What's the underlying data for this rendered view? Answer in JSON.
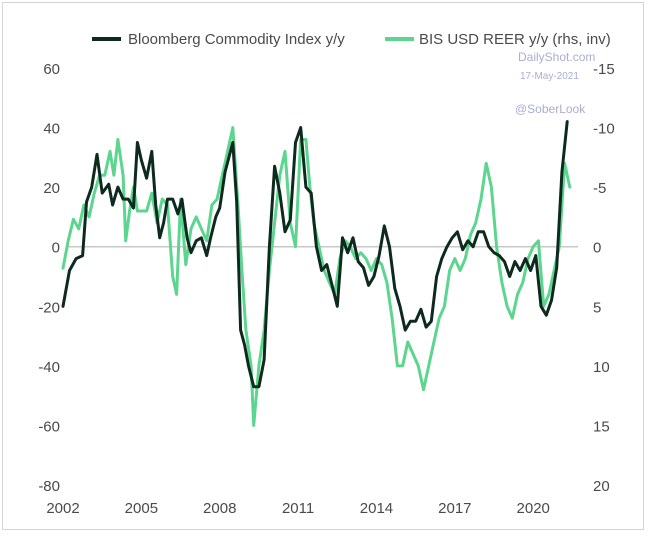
{
  "chart_data": {
    "type": "line",
    "legend": [
      {
        "label": "Bloomberg Commodity Index y/y",
        "color": "#0e2a1e"
      },
      {
        "label": "BIS USD REER y/y (rhs, inv)",
        "color": "#5cd68e"
      }
    ],
    "legend_position": "top",
    "watermark": {
      "site": "DailyShot.com",
      "date": "17-May-2021",
      "handle": "@SoberLook"
    },
    "x_ticks": [
      "2002",
      "2005",
      "2008",
      "2011",
      "2014",
      "2017",
      "2020"
    ],
    "x_range": [
      2002,
      2021.6
    ],
    "y_left": {
      "ticks": [
        "60",
        "40",
        "20",
        "0",
        "-20",
        "-40",
        "-60",
        "-80"
      ],
      "range": [
        -80,
        60
      ]
    },
    "y_right": {
      "ticks": [
        "-15",
        "-10",
        "-5",
        "0",
        "5",
        "10",
        "15",
        "20"
      ],
      "range": [
        20,
        -15
      ],
      "inverted": true
    },
    "zero_line": true,
    "series": [
      {
        "name": "Bloomberg Commodity Index y/y",
        "axis": "left",
        "color": "#0e2a1e",
        "points": [
          [
            2002.0,
            -20
          ],
          [
            2002.25,
            -8
          ],
          [
            2002.5,
            -4
          ],
          [
            2002.75,
            -3
          ],
          [
            2002.9,
            15
          ],
          [
            2003.1,
            20
          ],
          [
            2003.3,
            31
          ],
          [
            2003.5,
            18
          ],
          [
            2003.75,
            21
          ],
          [
            2003.9,
            14
          ],
          [
            2004.1,
            20
          ],
          [
            2004.3,
            16
          ],
          [
            2004.5,
            16
          ],
          [
            2004.7,
            13
          ],
          [
            2004.85,
            35
          ],
          [
            2005.0,
            29
          ],
          [
            2005.2,
            23
          ],
          [
            2005.4,
            32
          ],
          [
            2005.55,
            14
          ],
          [
            2005.7,
            3
          ],
          [
            2005.85,
            8
          ],
          [
            2006.0,
            16
          ],
          [
            2006.2,
            16
          ],
          [
            2006.4,
            11
          ],
          [
            2006.55,
            16
          ],
          [
            2006.75,
            3
          ],
          [
            2006.9,
            -2
          ],
          [
            2007.1,
            2
          ],
          [
            2007.3,
            3
          ],
          [
            2007.5,
            -3
          ],
          [
            2007.65,
            3
          ],
          [
            2007.85,
            10
          ],
          [
            2008.0,
            13
          ],
          [
            2008.2,
            25
          ],
          [
            2008.35,
            30
          ],
          [
            2008.5,
            35
          ],
          [
            2008.65,
            15
          ],
          [
            2008.8,
            -28
          ],
          [
            2008.95,
            -33
          ],
          [
            2009.1,
            -40
          ],
          [
            2009.3,
            -47
          ],
          [
            2009.5,
            -47
          ],
          [
            2009.7,
            -38
          ],
          [
            2009.9,
            0
          ],
          [
            2010.1,
            27
          ],
          [
            2010.3,
            18
          ],
          [
            2010.5,
            5
          ],
          [
            2010.7,
            9
          ],
          [
            2010.9,
            35
          ],
          [
            2011.1,
            40
          ],
          [
            2011.3,
            20
          ],
          [
            2011.5,
            18
          ],
          [
            2011.7,
            0
          ],
          [
            2011.9,
            -8
          ],
          [
            2012.1,
            -6
          ],
          [
            2012.3,
            -13
          ],
          [
            2012.5,
            -20
          ],
          [
            2012.7,
            3
          ],
          [
            2012.9,
            -2
          ],
          [
            2013.1,
            3
          ],
          [
            2013.3,
            -5
          ],
          [
            2013.5,
            -7
          ],
          [
            2013.7,
            -13
          ],
          [
            2013.9,
            -10
          ],
          [
            2014.1,
            -3
          ],
          [
            2014.3,
            7
          ],
          [
            2014.5,
            0
          ],
          [
            2014.7,
            -14
          ],
          [
            2014.9,
            -20
          ],
          [
            2015.1,
            -28
          ],
          [
            2015.3,
            -25
          ],
          [
            2015.5,
            -25
          ],
          [
            2015.7,
            -21
          ],
          [
            2015.9,
            -27
          ],
          [
            2016.1,
            -25
          ],
          [
            2016.3,
            -10
          ],
          [
            2016.5,
            -4
          ],
          [
            2016.7,
            0
          ],
          [
            2016.9,
            3
          ],
          [
            2017.1,
            5
          ],
          [
            2017.3,
            -1
          ],
          [
            2017.5,
            2
          ],
          [
            2017.7,
            0
          ],
          [
            2017.9,
            5
          ],
          [
            2018.1,
            5
          ],
          [
            2018.3,
            0
          ],
          [
            2018.5,
            -2
          ],
          [
            2018.7,
            -3
          ],
          [
            2018.9,
            -5
          ],
          [
            2019.1,
            -10
          ],
          [
            2019.3,
            -5
          ],
          [
            2019.5,
            -8
          ],
          [
            2019.7,
            -4
          ],
          [
            2019.9,
            -8
          ],
          [
            2020.1,
            -3
          ],
          [
            2020.3,
            -20
          ],
          [
            2020.5,
            -23
          ],
          [
            2020.7,
            -18
          ],
          [
            2020.9,
            -7
          ],
          [
            2021.1,
            25
          ],
          [
            2021.3,
            42
          ]
        ]
      },
      {
        "name": "BIS USD REER y/y (rhs, inv)",
        "axis": "right",
        "color": "#5cd68e",
        "points": [
          [
            2002.0,
            1.8
          ],
          [
            2002.2,
            -0.5
          ],
          [
            2002.4,
            -2.3
          ],
          [
            2002.6,
            -1.5
          ],
          [
            2002.8,
            -3.5
          ],
          [
            2003.0,
            -2.5
          ],
          [
            2003.2,
            -4.5
          ],
          [
            2003.4,
            -6
          ],
          [
            2003.6,
            -6
          ],
          [
            2003.8,
            -8
          ],
          [
            2003.95,
            -6
          ],
          [
            2004.1,
            -9
          ],
          [
            2004.3,
            -6
          ],
          [
            2004.4,
            -0.5
          ],
          [
            2004.55,
            -3
          ],
          [
            2004.7,
            -5
          ],
          [
            2004.85,
            -3
          ],
          [
            2005.0,
            -3
          ],
          [
            2005.2,
            -3
          ],
          [
            2005.4,
            -4.5
          ],
          [
            2005.6,
            -2
          ],
          [
            2005.8,
            -4
          ],
          [
            2006.0,
            -3.5
          ],
          [
            2006.2,
            2.5
          ],
          [
            2006.35,
            4
          ],
          [
            2006.5,
            -4
          ],
          [
            2006.7,
            1.5
          ],
          [
            2006.9,
            -1.5
          ],
          [
            2007.1,
            -2.5
          ],
          [
            2007.3,
            -1.5
          ],
          [
            2007.5,
            -0.5
          ],
          [
            2007.7,
            -3.5
          ],
          [
            2007.9,
            -4
          ],
          [
            2008.1,
            -6
          ],
          [
            2008.3,
            -8
          ],
          [
            2008.5,
            -10
          ],
          [
            2008.7,
            -3.5
          ],
          [
            2008.85,
            2
          ],
          [
            2009.0,
            7
          ],
          [
            2009.2,
            10
          ],
          [
            2009.3,
            15
          ],
          [
            2009.5,
            10
          ],
          [
            2009.7,
            7
          ],
          [
            2009.9,
            2
          ],
          [
            2010.1,
            -2
          ],
          [
            2010.3,
            -6
          ],
          [
            2010.5,
            -8
          ],
          [
            2010.7,
            -2
          ],
          [
            2010.9,
            0
          ],
          [
            2011.1,
            -9
          ],
          [
            2011.3,
            -9
          ],
          [
            2011.45,
            -5
          ],
          [
            2011.6,
            -2
          ],
          [
            2011.8,
            0
          ],
          [
            2012.0,
            2
          ],
          [
            2012.2,
            3
          ],
          [
            2012.4,
            4
          ],
          [
            2012.6,
            1
          ],
          [
            2012.8,
            -0.5
          ],
          [
            2013.0,
            0
          ],
          [
            2013.2,
            1
          ],
          [
            2013.4,
            0.5
          ],
          [
            2013.6,
            1
          ],
          [
            2013.8,
            2
          ],
          [
            2014.0,
            1
          ],
          [
            2014.2,
            1.5
          ],
          [
            2014.4,
            3
          ],
          [
            2014.6,
            6
          ],
          [
            2014.8,
            10
          ],
          [
            2015.0,
            10
          ],
          [
            2015.2,
            8
          ],
          [
            2015.4,
            9
          ],
          [
            2015.6,
            10
          ],
          [
            2015.8,
            12
          ],
          [
            2016.0,
            10
          ],
          [
            2016.2,
            8
          ],
          [
            2016.4,
            6
          ],
          [
            2016.6,
            5
          ],
          [
            2016.8,
            2
          ],
          [
            2017.0,
            1
          ],
          [
            2017.2,
            2
          ],
          [
            2017.4,
            1
          ],
          [
            2017.6,
            -1
          ],
          [
            2017.8,
            -2
          ],
          [
            2018.0,
            -4
          ],
          [
            2018.2,
            -7
          ],
          [
            2018.4,
            -5
          ],
          [
            2018.6,
            0
          ],
          [
            2018.8,
            3
          ],
          [
            2019.0,
            5
          ],
          [
            2019.2,
            6
          ],
          [
            2019.4,
            4
          ],
          [
            2019.6,
            3
          ],
          [
            2019.8,
            1
          ],
          [
            2020.0,
            0
          ],
          [
            2020.2,
            -0.5
          ],
          [
            2020.4,
            5
          ],
          [
            2020.6,
            4
          ],
          [
            2020.8,
            2
          ],
          [
            2021.0,
            0
          ],
          [
            2021.2,
            -7
          ],
          [
            2021.4,
            -5
          ]
        ]
      }
    ]
  }
}
